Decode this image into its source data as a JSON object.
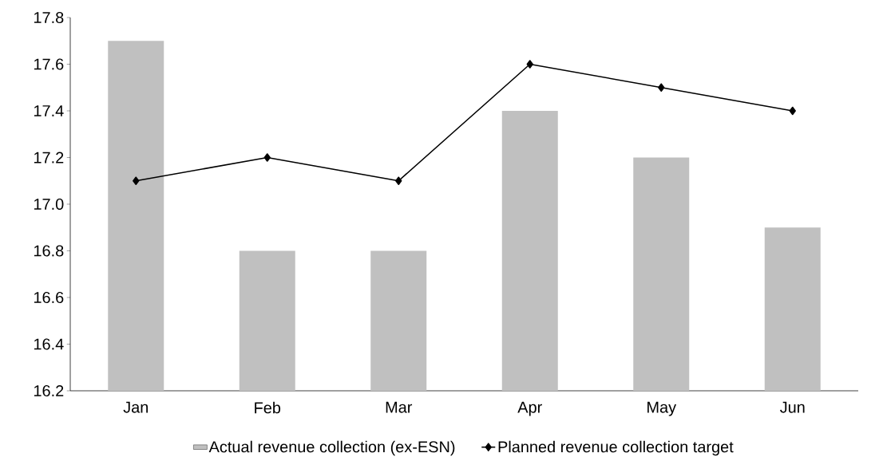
{
  "chart_data": {
    "type": "bar",
    "categories": [
      "Jan",
      "Feb",
      "Mar",
      "Apr",
      "May",
      "Jun"
    ],
    "series": [
      {
        "name": "Actual revenue collection (ex-ESN)",
        "color": "#c0c0c0",
        "values": [
          17.7,
          16.8,
          16.8,
          17.4,
          17.2,
          16.9
        ]
      },
      {
        "name": "Planned revenue collection target",
        "type": "line",
        "color": "#000000",
        "values": [
          17.1,
          17.2,
          17.1,
          17.6,
          17.5,
          17.4
        ]
      }
    ],
    "ylim": [
      16.2,
      17.8
    ],
    "yticks": [
      {
        "value": 16.2,
        "label": "16.2"
      },
      {
        "value": 16.4,
        "label": "16.4"
      },
      {
        "value": 16.6,
        "label": "16.6"
      },
      {
        "value": 16.8,
        "label": "16.8"
      },
      {
        "value": 17.0,
        "label": "17.0"
      },
      {
        "value": 17.2,
        "label": "17.2"
      },
      {
        "value": 17.4,
        "label": "17.4"
      },
      {
        "value": 17.6,
        "label": "17.6"
      },
      {
        "value": 17.8,
        "label": "17.8"
      }
    ],
    "grid": false,
    "legend": "bottom",
    "marker": "diamond",
    "line_style": "solid"
  }
}
